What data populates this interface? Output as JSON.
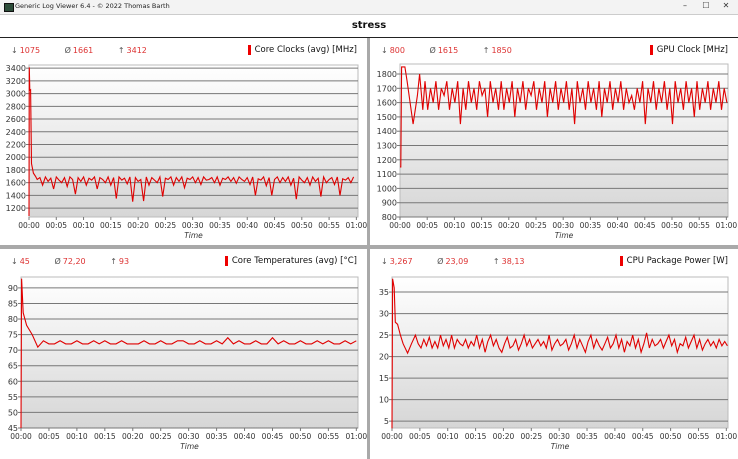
{
  "window": {
    "title": "Generic Log Viewer 6.4 - © 2022 Thomas Barth",
    "minimize": "–",
    "maximize": "☐",
    "close": "✕"
  },
  "dashboard_title": "stress",
  "colors": {
    "series": "#e00000",
    "stats": "#d33333"
  },
  "stat_symbols": {
    "min": "↓",
    "avg": "Ø",
    "max": "↑"
  },
  "chart_data": [
    {
      "type": "line",
      "title": "Core Clocks (avg) [MHz]",
      "stats": {
        "min": "1075",
        "avg": "1661",
        "max": "3412"
      },
      "xlabel": "Time",
      "ylabel": "",
      "xticks": [
        "00:00",
        "00:05",
        "00:10",
        "00:15",
        "00:20",
        "00:25",
        "00:30",
        "00:35",
        "00:40",
        "00:45",
        "00:50",
        "00:55",
        "01:00"
      ],
      "yticks": [
        1200,
        1400,
        1600,
        1800,
        2000,
        2200,
        2400,
        2600,
        2800,
        3000,
        3200,
        3400
      ],
      "ylim": [
        1060,
        3450
      ],
      "xlim_min": [
        0,
        60.3
      ],
      "points": [
        [
          0,
          1075
        ],
        [
          0.05,
          3412
        ],
        [
          0.15,
          3050
        ],
        [
          0.3,
          3060
        ],
        [
          0.45,
          1900
        ],
        [
          0.8,
          1750
        ],
        [
          1.2,
          1700
        ]
      ],
      "steady": {
        "start": 1.5,
        "step": 0.5,
        "values": [
          1650,
          1680,
          1560,
          1690,
          1620,
          1670,
          1500,
          1690,
          1640,
          1600,
          1680,
          1540,
          1690,
          1650,
          1420,
          1680,
          1620,
          1690,
          1560,
          1670,
          1640,
          1690,
          1500,
          1680,
          1650,
          1600,
          1690,
          1560,
          1680,
          1350,
          1690,
          1640,
          1670,
          1580,
          1690,
          1300,
          1680,
          1620,
          1650,
          1310,
          1690,
          1560,
          1680,
          1640,
          1600,
          1690,
          1380,
          1670,
          1650,
          1690,
          1560,
          1680,
          1620,
          1690,
          1520,
          1670,
          1650,
          1690,
          1600,
          1680,
          1570,
          1690,
          1640,
          1650,
          1680,
          1600,
          1690,
          1560,
          1670,
          1650,
          1690,
          1620,
          1680,
          1590,
          1690,
          1650,
          1620,
          1680,
          1570,
          1690,
          1400,
          1660,
          1640,
          1690,
          1550,
          1680,
          1400,
          1650,
          1690,
          1600,
          1680,
          1620,
          1690,
          1560,
          1670,
          1340,
          1690,
          1640,
          1600,
          1680,
          1560,
          1690,
          1620,
          1670,
          1380,
          1690,
          1600,
          1650,
          1680,
          1570,
          1690,
          1400,
          1660,
          1640,
          1680,
          1600,
          1690
        ]
      }
    },
    {
      "type": "line",
      "title": "GPU Clock [MHz]",
      "stats": {
        "min": "800",
        "avg": "1615",
        "max": "1850"
      },
      "xlabel": "Time",
      "ylabel": "",
      "xticks": [
        "00:00",
        "00:05",
        "00:10",
        "00:15",
        "00:20",
        "00:25",
        "00:30",
        "00:35",
        "00:40",
        "00:45",
        "00:50",
        "00:55",
        "01:00"
      ],
      "yticks": [
        800,
        900,
        1000,
        1100,
        1200,
        1300,
        1400,
        1500,
        1600,
        1700,
        1800
      ],
      "ylim": [
        800,
        1870
      ],
      "xlim_min": [
        0,
        60.3
      ],
      "points": [
        [
          0,
          1150
        ],
        [
          0.15,
          1150
        ],
        [
          0.3,
          1850
        ],
        [
          0.9,
          1850
        ],
        [
          1.3,
          1750
        ],
        [
          2.4,
          1450
        ],
        [
          3.2,
          1650
        ],
        [
          3.6,
          1800
        ],
        [
          4.2,
          1550
        ]
      ],
      "steady": {
        "start": 4.6,
        "step": 0.5,
        "values": [
          1750,
          1550,
          1700,
          1600,
          1750,
          1550,
          1700,
          1650,
          1750,
          1550,
          1700,
          1600,
          1750,
          1450,
          1700,
          1550,
          1750,
          1600,
          1700,
          1550,
          1750,
          1650,
          1700,
          1500,
          1750,
          1600,
          1700,
          1550,
          1750,
          1550,
          1700,
          1600,
          1750,
          1500,
          1700,
          1600,
          1750,
          1550,
          1700,
          1650,
          1750,
          1550,
          1700,
          1600,
          1750,
          1500,
          1700,
          1600,
          1750,
          1550,
          1700,
          1600,
          1750,
          1550,
          1700,
          1450,
          1750,
          1600,
          1700,
          1550,
          1750,
          1600,
          1700,
          1550,
          1750,
          1500,
          1700,
          1600,
          1750,
          1550,
          1700,
          1600,
          1750,
          1550,
          1700,
          1600,
          1650,
          1550,
          1700,
          1600,
          1750,
          1450,
          1700,
          1600,
          1750,
          1550,
          1700,
          1600,
          1750,
          1550,
          1700,
          1450,
          1750,
          1600,
          1700,
          1550,
          1750,
          1600,
          1700,
          1500,
          1750,
          1550,
          1700,
          1600,
          1750,
          1550,
          1700,
          1600,
          1750,
          1550,
          1700,
          1600
        ]
      }
    },
    {
      "type": "line",
      "title": "Core Temperatures (avg) [°C]",
      "stats": {
        "min": "45",
        "avg": "72,20",
        "max": "93"
      },
      "xlabel": "Time",
      "ylabel": "",
      "xticks": [
        "00:00",
        "00:05",
        "00:10",
        "00:15",
        "00:20",
        "00:25",
        "00:30",
        "00:35",
        "00:40",
        "00:45",
        "00:50",
        "00:55",
        "01:00"
      ],
      "yticks": [
        45,
        50,
        55,
        60,
        65,
        70,
        75,
        80,
        85,
        90
      ],
      "ylim": [
        45,
        93.5
      ],
      "xlim_min": [
        0,
        60.3
      ],
      "points": [
        [
          0,
          45
        ],
        [
          0.1,
          93
        ],
        [
          0.4,
          82
        ],
        [
          1,
          78
        ],
        [
          2,
          75
        ],
        [
          3,
          71
        ],
        [
          4,
          73
        ]
      ],
      "steady": {
        "start": 5,
        "step": 1,
        "values": [
          72,
          72,
          73,
          72,
          72,
          73,
          72,
          72,
          73,
          72,
          73,
          72,
          72,
          73,
          72,
          72,
          72,
          73,
          72,
          72,
          73,
          72,
          72,
          73,
          73,
          72,
          72,
          73,
          72,
          72,
          73,
          72,
          74,
          72,
          73,
          72,
          72,
          73,
          72,
          72,
          74,
          72,
          73,
          72,
          72,
          73,
          72,
          72,
          73,
          72,
          73,
          72,
          72,
          73,
          72,
          73
        ]
      }
    },
    {
      "type": "line",
      "title": "CPU Package Power [W]",
      "stats": {
        "min": "3,267",
        "avg": "23,09",
        "max": "38,13"
      },
      "xlabel": "Time",
      "ylabel": "",
      "xticks": [
        "00:00",
        "00:05",
        "00:10",
        "00:15",
        "00:20",
        "00:25",
        "00:30",
        "00:35",
        "00:40",
        "00:45",
        "00:50",
        "00:55",
        "01:00"
      ],
      "yticks": [
        5,
        10,
        15,
        20,
        25,
        30,
        35
      ],
      "ylim": [
        3.4,
        38.5
      ],
      "xlim_min": [
        0,
        60.3
      ],
      "points": [
        [
          0,
          3.3
        ],
        [
          0.1,
          38.1
        ],
        [
          0.4,
          36
        ],
        [
          0.6,
          28
        ],
        [
          1,
          27.5
        ],
        [
          1.5,
          25
        ],
        [
          2,
          23
        ],
        [
          2.8,
          20.8
        ],
        [
          3.5,
          23
        ],
        [
          4.2,
          25
        ]
      ],
      "steady": {
        "start": 4.7,
        "step": 0.5,
        "values": [
          23,
          22,
          24,
          22.5,
          24.5,
          22,
          23.5,
          22,
          25,
          22.5,
          24,
          22,
          25,
          22,
          24,
          23,
          22.5,
          24,
          22,
          23.5,
          22.5,
          25,
          22,
          24,
          21,
          23.5,
          25,
          22.5,
          24,
          22,
          21,
          23,
          24.5,
          22,
          22.5,
          24,
          21.5,
          23,
          25,
          22.5,
          24,
          22,
          23,
          24,
          22.5,
          23.5,
          22,
          25,
          21.5,
          23,
          24,
          22.5,
          23,
          24,
          21.5,
          23,
          25,
          22,
          24,
          22.5,
          21,
          23.5,
          25,
          22,
          24,
          22.5,
          21.5,
          23,
          24.5,
          22,
          23,
          25,
          22,
          24,
          21,
          23.5,
          22.5,
          25,
          22,
          24,
          21,
          23,
          25.5,
          22,
          24,
          22.5,
          23,
          24,
          22,
          23.5,
          25,
          22.5,
          24,
          21,
          23,
          22.5,
          24.5,
          22,
          23.5,
          25,
          22,
          24,
          21.5,
          23,
          24,
          22.5,
          23.5,
          22,
          24,
          22.5,
          23.5,
          22.5
        ]
      }
    }
  ]
}
